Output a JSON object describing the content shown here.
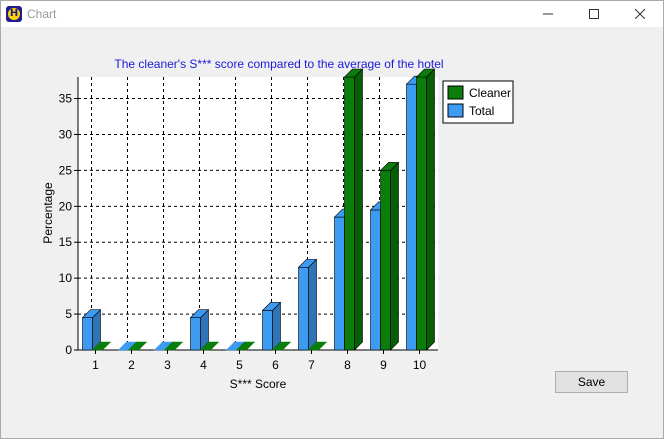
{
  "window": {
    "title": "Chart",
    "app_icon_letter": "H",
    "buttons": [
      "minimize",
      "maximize",
      "close"
    ]
  },
  "toolbar": {
    "save_label": "Save"
  },
  "colors": {
    "cleaner": "#0a7d0a",
    "total": "#3d9bf2",
    "title": "#1a1adc",
    "window_bg": "#f0f0f0"
  },
  "chart_data": {
    "type": "bar",
    "title": "The cleaner's S*** score compared to the average of the hotel",
    "xlabel": "S*** Score",
    "ylabel": "Percentage",
    "categories": [
      "1",
      "2",
      "3",
      "4",
      "5",
      "6",
      "7",
      "8",
      "9",
      "10"
    ],
    "series": [
      {
        "name": "Total",
        "values": [
          4.5,
          0,
          0,
          4.5,
          0,
          5.5,
          11.5,
          18.5,
          19.5,
          37
        ]
      },
      {
        "name": "Cleaner",
        "values": [
          0,
          0,
          0,
          0,
          0,
          0,
          0,
          38,
          25,
          38
        ]
      }
    ],
    "ylim": [
      0,
      38
    ],
    "yticks": [
      0,
      5,
      10,
      15,
      20,
      25,
      30,
      35
    ],
    "grid": true,
    "legend": "top-right",
    "style": "3d"
  }
}
